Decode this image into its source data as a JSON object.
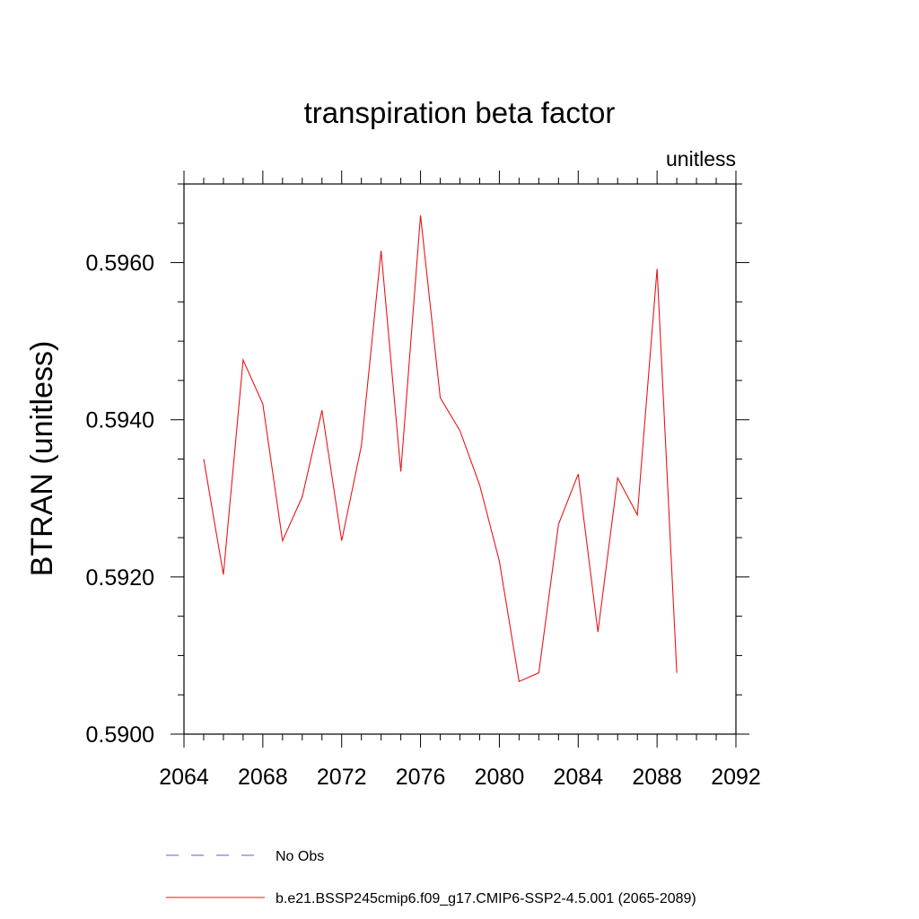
{
  "chart_data": {
    "type": "line",
    "title": "transpiration beta factor",
    "units_label": "unitless",
    "ylabel": "BTRAN  (unitless)",
    "xlabel": "",
    "xlim": [
      2064,
      2092
    ],
    "ylim": [
      0.59,
      0.597
    ],
    "x_major_ticks": [
      2064,
      2068,
      2072,
      2076,
      2080,
      2084,
      2088,
      2092
    ],
    "x_tick_labels": [
      "2064",
      "2068",
      "2072",
      "2076",
      "2080",
      "2084",
      "2088",
      "2092"
    ],
    "y_major_ticks": [
      0.59,
      0.592,
      0.594,
      0.596
    ],
    "y_tick_labels": [
      "0.5900",
      "0.5920",
      "0.5940",
      "0.5960"
    ],
    "grid": false,
    "legend_position": "bottom",
    "legend": [
      {
        "label": "No Obs",
        "color": "#6a5acd",
        "style": "dashed"
      },
      {
        "label": "b.e21.BSSP245cmip6.f09_g17.CMIP6-SSP2-4.5.001 (2065-2089)",
        "color": "#e8161a",
        "style": "solid"
      }
    ],
    "series": [
      {
        "color": "#e8161a",
        "x": [
          2065,
          2066,
          2067,
          2068,
          2069,
          2070,
          2071,
          2072,
          2073,
          2074,
          2075,
          2076,
          2077,
          2078,
          2079,
          2080,
          2081,
          2082,
          2083,
          2084,
          2085,
          2086,
          2087,
          2088,
          2089
        ],
        "values": [
          0.5935,
          0.59203,
          0.59476,
          0.5942,
          0.59246,
          0.59302,
          0.59412,
          0.59246,
          0.59367,
          0.59615,
          0.59334,
          0.5966,
          0.59428,
          0.59386,
          0.59317,
          0.5922,
          0.59067,
          0.59078,
          0.59267,
          0.59331,
          0.5913,
          0.59326,
          0.59279,
          0.59592,
          0.59078
        ]
      }
    ]
  }
}
